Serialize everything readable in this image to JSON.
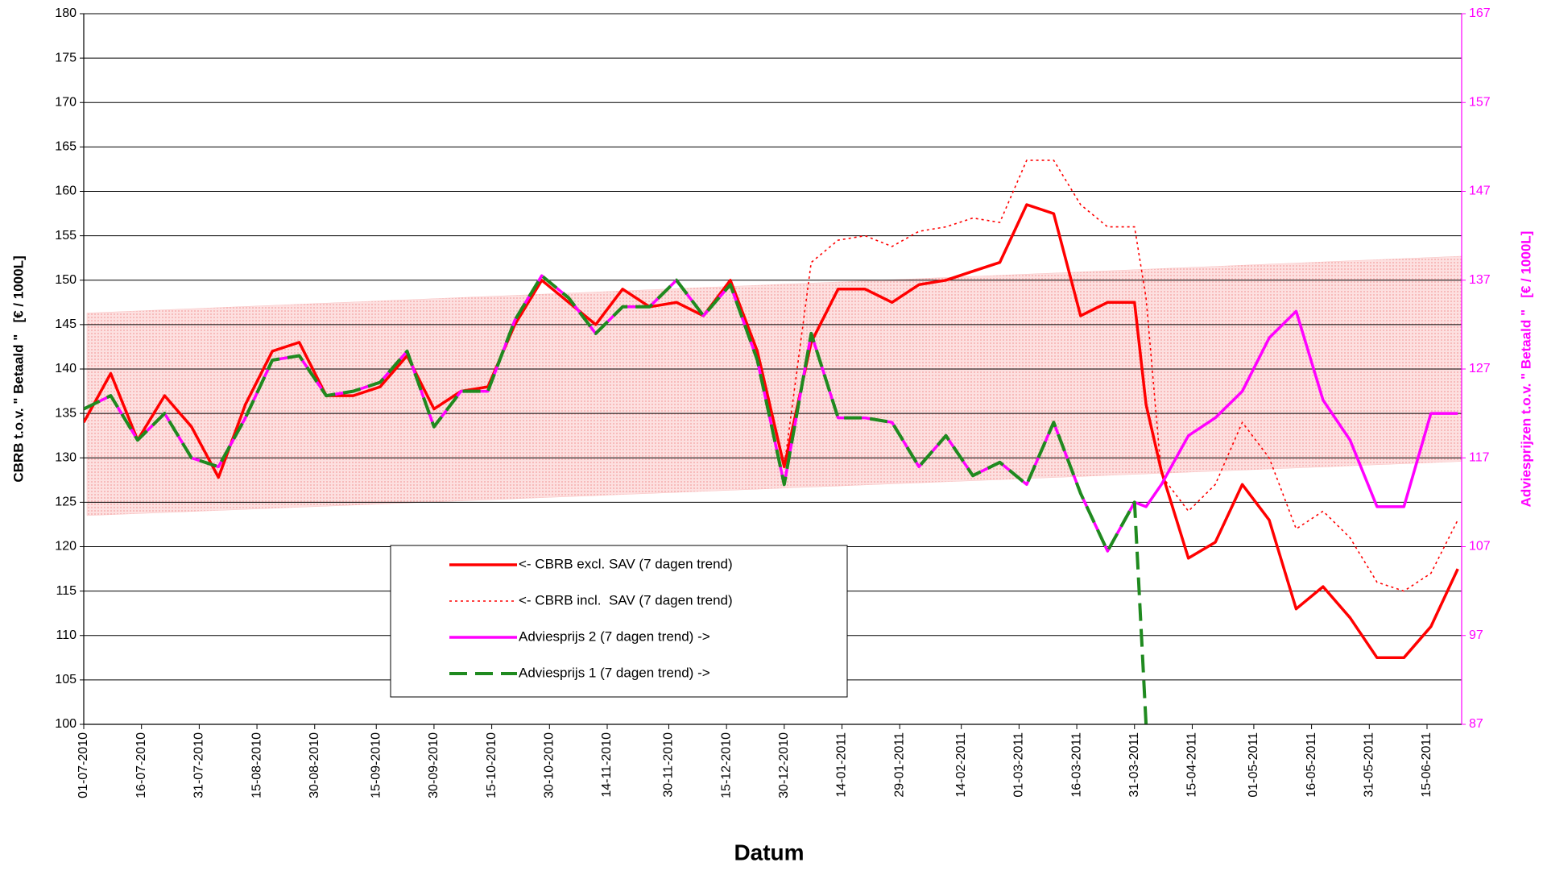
{
  "chart_data": {
    "type": "line",
    "x_label": "Datum",
    "y_label": "CBRB t.o.v. \" Betaald \"   [€ / 1000L]",
    "y2_label": "Adviesprijzen t.o.v. \" Betaald \"   [€ / 1000L]",
    "x": [
      "01-07-2010",
      "08-07-2010",
      "15-07-2010",
      "22-07-2010",
      "29-07-2010",
      "05-08-2010",
      "12-08-2010",
      "19-08-2010",
      "26-08-2010",
      "02-09-2010",
      "09-09-2010",
      "16-09-2010",
      "23-09-2010",
      "30-09-2010",
      "07-10-2010",
      "14-10-2010",
      "21-10-2010",
      "28-10-2010",
      "04-11-2010",
      "11-11-2010",
      "18-11-2010",
      "25-11-2010",
      "02-12-2010",
      "09-12-2010",
      "16-12-2010",
      "23-12-2010",
      "30-12-2010",
      "06-01-2011",
      "13-01-2011",
      "20-01-2011",
      "27-01-2011",
      "03-02-2011",
      "10-02-2011",
      "17-02-2011",
      "24-02-2011",
      "03-03-2011",
      "10-03-2011",
      "17-03-2011",
      "24-03-2011",
      "31-03-2011",
      "03-04-2011",
      "07-04-2011",
      "14-04-2011",
      "21-04-2011",
      "28-04-2011",
      "05-05-2011",
      "12-05-2011",
      "19-05-2011",
      "26-05-2011",
      "02-06-2011",
      "09-06-2011",
      "16-06-2011",
      "23-06-2011"
    ],
    "xlim": [
      "01-07-2010",
      "24-06-2011"
    ],
    "xticks": [
      "01-07-2010",
      "16-07-2010",
      "31-07-2010",
      "15-08-2010",
      "30-08-2010",
      "15-09-2010",
      "30-09-2010",
      "15-10-2010",
      "30-10-2010",
      "14-11-2010",
      "30-11-2010",
      "15-12-2010",
      "30-12-2010",
      "14-01-2011",
      "29-01-2011",
      "14-02-2011",
      "01-03-2011",
      "16-03-2011",
      "31-03-2011",
      "15-04-2011",
      "01-05-2011",
      "16-05-2011",
      "31-05-2011",
      "15-06-2011"
    ],
    "ylim": [
      100,
      180
    ],
    "yticks": [
      100,
      105,
      110,
      115,
      120,
      125,
      130,
      135,
      140,
      145,
      150,
      155,
      160,
      165,
      170,
      175,
      180
    ],
    "y2lim": [
      87,
      167
    ],
    "y2ticks": [
      87,
      97,
      107,
      117,
      127,
      137,
      147,
      157,
      167
    ],
    "grid": true,
    "band": {
      "color": "#f9c4c4",
      "lower": [
        123.5,
        129.6
      ],
      "upper": [
        146.3,
        152.7
      ]
    },
    "series": [
      {
        "name": "<- CBRB excl. SAV (7 dagen trend)",
        "color": "#ff0000",
        "style": "solid",
        "width": 3.5,
        "values": [
          134,
          139.5,
          132,
          137,
          133.5,
          127.8,
          136,
          142,
          143,
          137,
          137,
          138,
          141.5,
          135.5,
          137.5,
          138,
          145,
          150,
          147.5,
          145,
          149,
          147,
          147.5,
          146,
          150,
          142,
          129,
          143,
          149,
          149,
          147.5,
          149.5,
          150,
          151,
          152,
          158.5,
          157.5,
          146,
          147.5,
          147.5,
          136,
          128.5,
          118.7,
          120.5,
          127,
          123,
          113,
          115.5,
          112,
          107.5,
          107.5,
          111,
          117.5
        ]
      },
      {
        "name": "<- CBRB incl.  SAV (7 dagen trend)",
        "color": "#ff0000",
        "style": "dotted",
        "width": 1.6,
        "values": [
          134,
          139.5,
          132,
          137,
          133.5,
          127.8,
          136,
          142,
          143,
          137,
          137,
          138,
          141.5,
          135.5,
          137.5,
          138,
          145,
          150,
          147.5,
          145,
          149,
          147,
          147.5,
          146,
          150,
          142,
          129,
          152,
          154.5,
          155,
          153.8,
          155.5,
          156,
          157,
          156.5,
          163.5,
          163.5,
          158.5,
          156,
          156,
          148,
          128,
          124,
          127,
          134,
          130,
          122,
          124,
          121,
          116,
          115,
          117,
          123
        ]
      },
      {
        "name": "Adviesprijs 2 (7 dagen trend) ->",
        "color": "#ff00ff",
        "style": "solid",
        "width": 3.5,
        "axis": "y2",
        "values": [
          122.5,
          124,
          119,
          122,
          117,
          116,
          121.5,
          128,
          128.5,
          124,
          124.5,
          125.5,
          129,
          120.5,
          124.5,
          124.5,
          132.5,
          137.5,
          135,
          131,
          134,
          134,
          137,
          133,
          136.5,
          128,
          114,
          131,
          121.5,
          121.5,
          121,
          116,
          119.5,
          115,
          116.5,
          114,
          121,
          113,
          106.5,
          112,
          111.5,
          114,
          119.5,
          121.5,
          124.5,
          130.5,
          133.5,
          123.5,
          119,
          111.5,
          111.5,
          122,
          122
        ]
      },
      {
        "name": "Adviesprijs 1 (7 dagen trend) ->",
        "color": "#1f8a1f",
        "style": "dashed",
        "width": 4,
        "axis": "y2",
        "values": [
          122.5,
          124,
          119,
          122,
          117,
          116,
          121.5,
          128,
          128.5,
          124,
          124.5,
          125.5,
          129,
          120.5,
          124.5,
          124.5,
          132.5,
          137.5,
          135,
          131,
          134,
          134,
          137,
          133,
          136.5,
          128,
          114,
          131,
          121.5,
          121.5,
          121,
          116,
          119.5,
          115,
          116.5,
          114,
          121,
          113,
          106.5,
          112,
          87,
          null,
          null,
          null,
          null,
          null,
          null,
          null,
          null,
          null,
          null,
          null,
          null
        ]
      }
    ]
  }
}
